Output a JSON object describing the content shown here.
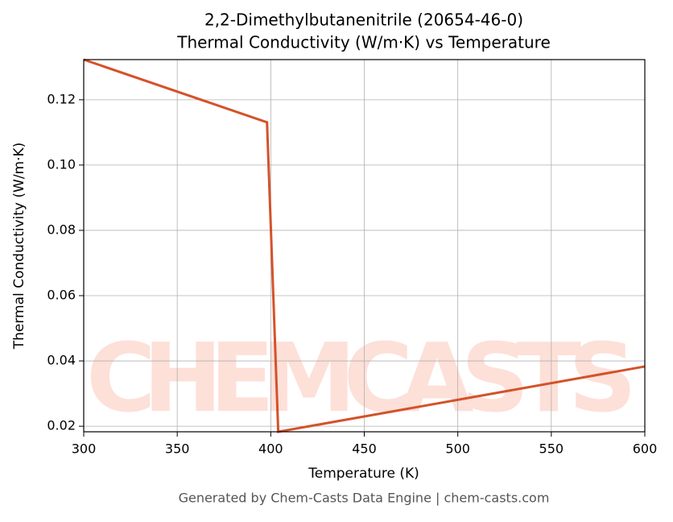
{
  "chart_data": {
    "type": "line",
    "title": "2,2-Dimethylbutanenitrile (20654-46-0)",
    "subtitle": "Thermal Conductivity (W/m·K) vs Temperature",
    "x_label": "Temperature (K)",
    "y_label": "Thermal Conductivity (W/m·K)",
    "footer": "Generated by Chem-Casts Data Engine | chem-casts.com",
    "watermark": "CHEMCASTS",
    "x": [
      300,
      398,
      404,
      600
    ],
    "series": [
      {
        "name": "Thermal Conductivity",
        "color": "#d4522a",
        "values": [
          0.1323,
          0.1131,
          0.0183,
          0.0383
        ]
      }
    ],
    "xlim": [
      300,
      600
    ],
    "ylim": [
      0.0183,
      0.1323
    ],
    "xticks": [
      300,
      350,
      400,
      450,
      500,
      550,
      600
    ],
    "yticks": [
      0.02,
      0.04,
      0.06,
      0.08,
      {
        "value": 0.1,
        "label": "0.10"
      },
      0.12
    ],
    "grid": true
  }
}
